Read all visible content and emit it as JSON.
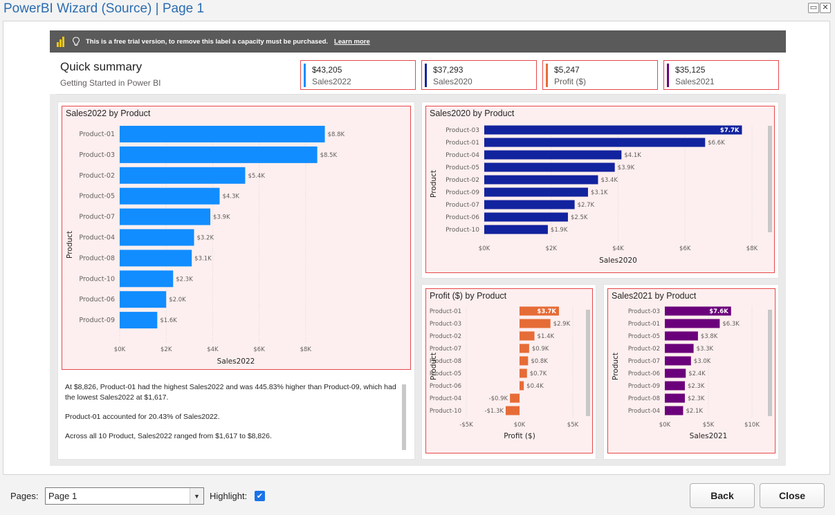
{
  "window": {
    "title": "PowerBI Wizard (Source) | Page 1"
  },
  "trial_banner": {
    "text": "This is a free trial version, to remove this label a capacity must be purchased.",
    "link": "Learn more"
  },
  "summary": {
    "title": "Quick summary",
    "subtitle": "Getting Started in Power BI"
  },
  "kpis": [
    {
      "value": "$43,205",
      "label": "Sales2022",
      "color": "#118dff"
    },
    {
      "value": "$37,293",
      "label": "Sales2020",
      "color": "#12239e"
    },
    {
      "value": "$5,247",
      "label": "Profit ($)",
      "color": "#e66c37"
    },
    {
      "value": "$35,125",
      "label": "Sales2021",
      "color": "#6b007b"
    }
  ],
  "narrative": [
    "At $8,826, Product-01 had the highest Sales2022 and was 445.83% higher than Product-09, which had the lowest Sales2022 at $1,617.",
    "Product-01 accounted for 20.43% of Sales2022.",
    "Across all 10 Product, Sales2022 ranged from $1,617 to $8,826."
  ],
  "chart_data": [
    {
      "type": "bar",
      "title": "Sales2022 by Product",
      "xlabel": "Sales2022",
      "ylabel": "Product",
      "color": "#118dff",
      "xlim": [
        0,
        10000
      ],
      "ticks": [
        "$0K",
        "$2K",
        "$4K",
        "$6K",
        "$8K"
      ],
      "categories": [
        "Product-01",
        "Product-03",
        "Product-02",
        "Product-05",
        "Product-07",
        "Product-04",
        "Product-08",
        "Product-10",
        "Product-06",
        "Product-09"
      ],
      "values": [
        8826,
        8500,
        5400,
        4300,
        3900,
        3200,
        3100,
        2300,
        2000,
        1617
      ],
      "labels": [
        "$8.8K",
        "$8.5K",
        "$5.4K",
        "$4.3K",
        "$3.9K",
        "$3.2K",
        "$3.1K",
        "$2.3K",
        "$2.0K",
        "$1.6K"
      ]
    },
    {
      "type": "bar",
      "title": "Sales2020 by Product",
      "xlabel": "Sales2020",
      "ylabel": "Product",
      "color": "#12239e",
      "xlim": [
        0,
        8000
      ],
      "ticks": [
        "$0K",
        "$2K",
        "$4K",
        "$6K",
        "$8K"
      ],
      "categories": [
        "Product-03",
        "Product-01",
        "Product-04",
        "Product-05",
        "Product-02",
        "Product-09",
        "Product-07",
        "Product-06",
        "Product-10"
      ],
      "values": [
        7700,
        6600,
        4100,
        3900,
        3400,
        3100,
        2700,
        2500,
        1900
      ],
      "labels": [
        "$7.7K",
        "$6.6K",
        "$4.1K",
        "$3.9K",
        "$3.4K",
        "$3.1K",
        "$2.7K",
        "$2.5K",
        "$1.9K"
      ]
    },
    {
      "type": "bar",
      "title": "Profit ($) by Product",
      "xlabel": "Profit ($)",
      "ylabel": "Product",
      "color": "#e66c37",
      "xlim": [
        -5000,
        5000
      ],
      "ticks": [
        "-$5K",
        "$0K",
        "$5K"
      ],
      "categories": [
        "Product-01",
        "Product-03",
        "Product-02",
        "Product-07",
        "Product-08",
        "Product-05",
        "Product-06",
        "Product-04",
        "Product-10"
      ],
      "values": [
        3700,
        2900,
        1400,
        900,
        800,
        700,
        400,
        -900,
        -1300
      ],
      "labels": [
        "$3.7K",
        "$2.9K",
        "$1.4K",
        "$0.9K",
        "$0.8K",
        "$0.7K",
        "$0.4K",
        "-$0.9K",
        "-$1.3K"
      ]
    },
    {
      "type": "bar",
      "title": "Sales2021 by Product",
      "xlabel": "Sales2021",
      "ylabel": "Product",
      "color": "#6b007b",
      "xlim": [
        0,
        10000
      ],
      "ticks": [
        "$0K",
        "$5K",
        "$10K"
      ],
      "categories": [
        "Product-03",
        "Product-01",
        "Product-05",
        "Product-02",
        "Product-07",
        "Product-06",
        "Product-09",
        "Product-08",
        "Product-04"
      ],
      "values": [
        7600,
        6300,
        3800,
        3300,
        3000,
        2400,
        2300,
        2300,
        2100
      ],
      "labels": [
        "$7.6K",
        "$6.3K",
        "$3.8K",
        "$3.3K",
        "$3.0K",
        "$2.4K",
        "$2.3K",
        "$2.3K",
        "$2.1K"
      ]
    }
  ],
  "footer": {
    "pages_label": "Pages:",
    "page_selected": "Page 1",
    "highlight_label": "Highlight:",
    "back_label": "Back",
    "close_label": "Close"
  }
}
